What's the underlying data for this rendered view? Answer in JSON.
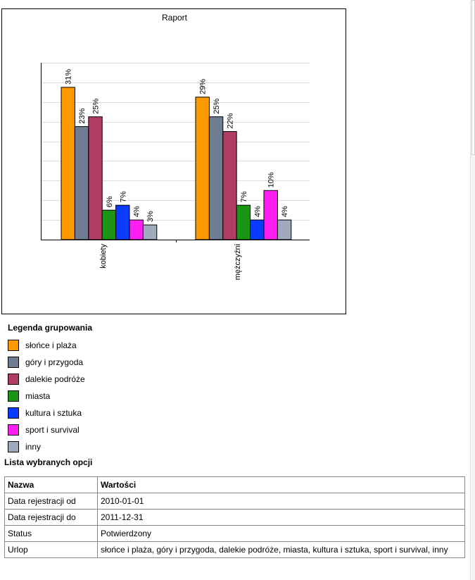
{
  "chart_data": {
    "type": "bar",
    "title": "Raport",
    "xlabel": "",
    "ylabel": "",
    "ylim": [
      0,
      36
    ],
    "grid": true,
    "categories": [
      "kobiety",
      "mężczyźni"
    ],
    "series": [
      {
        "name": "słońce i plaża",
        "color": "#ff9900",
        "values": [
          31,
          29
        ],
        "labels": [
          "31%",
          "29%"
        ]
      },
      {
        "name": "góry i przygoda",
        "color": "#6f7d93",
        "values": [
          23,
          25
        ],
        "labels": [
          "23%",
          "25%"
        ]
      },
      {
        "name": "dalekie podróże",
        "color": "#b03c61",
        "values": [
          25,
          22
        ],
        "labels": [
          "25%",
          "22%"
        ]
      },
      {
        "name": "miasta",
        "color": "#1b9614",
        "values": [
          6,
          7
        ],
        "labels": [
          "6%",
          "7%"
        ]
      },
      {
        "name": "kultura i sztuka",
        "color": "#0a3cff",
        "values": [
          7,
          4
        ],
        "labels": [
          "7%",
          "4%"
        ]
      },
      {
        "name": "sport i survival",
        "color": "#ff1ff0",
        "values": [
          4,
          10
        ],
        "labels": [
          "4%",
          "10%"
        ]
      },
      {
        "name": "inny",
        "color": "#a0aabd",
        "values": [
          3,
          4
        ],
        "labels": [
          "3%",
          "4%"
        ]
      }
    ]
  },
  "legend": {
    "title": "Legenda grupowania"
  },
  "options": {
    "title": "Lista wybranych opcji",
    "headers": {
      "name": "Nazwa",
      "value": "Wartości"
    },
    "rows": [
      {
        "name": "Data rejestracji od",
        "value": "2010-01-01"
      },
      {
        "name": "Data rejestracji do",
        "value": "2011-12-31"
      },
      {
        "name": "Status",
        "value": "Potwierdzony"
      },
      {
        "name": "Urlop",
        "value": "słońce i plaża, góry i przygoda, dalekie podróże, miasta, kultura i sztuka, sport i survival, inny"
      }
    ]
  }
}
